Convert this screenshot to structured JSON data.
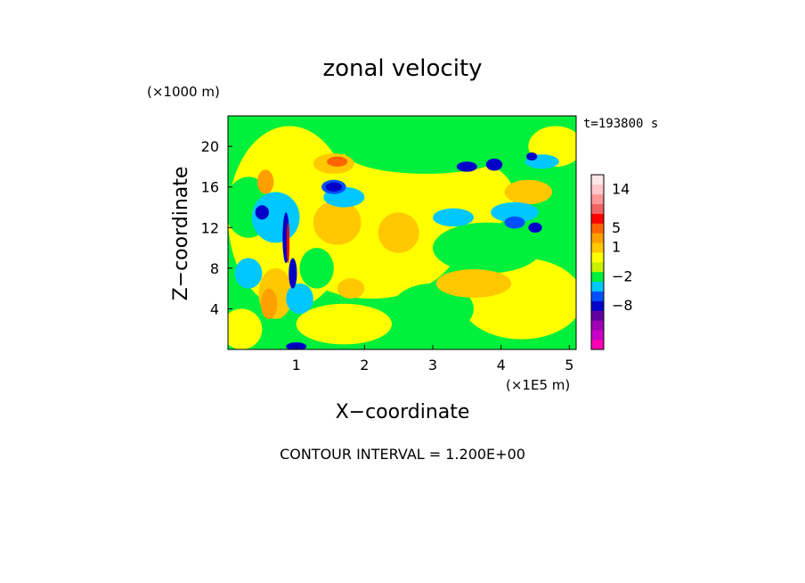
{
  "chart_data": {
    "type": "heatmap",
    "title": "zonal velocity",
    "xlabel": "X−coordinate",
    "ylabel": "Z−coordinate",
    "x_unit": "(×1E5 m)",
    "y_unit": "(×1000 m)",
    "time_label": "t=193800 s",
    "footer": "CONTOUR INTERVAL = 1.200E+00",
    "xlim": [
      0,
      5.1
    ],
    "ylim": [
      0,
      23
    ],
    "x_ticks": [
      {
        "value": 1,
        "label": "1"
      },
      {
        "value": 2,
        "label": "2"
      },
      {
        "value": 3,
        "label": "3"
      },
      {
        "value": 4,
        "label": "4"
      },
      {
        "value": 5,
        "label": "5"
      }
    ],
    "y_ticks": [
      {
        "value": 4,
        "label": "4"
      },
      {
        "value": 8,
        "label": "8"
      },
      {
        "value": 12,
        "label": "12"
      },
      {
        "value": 16,
        "label": "16"
      },
      {
        "value": 20,
        "label": "20"
      }
    ],
    "background_color": "#00f03c",
    "colorbar": {
      "colors": [
        "#ff00b4",
        "#c800c8",
        "#a000b4",
        "#6400a0",
        "#0000c8",
        "#0050ff",
        "#00c8ff",
        "#00f03c",
        "#c8f000",
        "#ffff00",
        "#ffc800",
        "#ffa000",
        "#ff6400",
        "#ff0000",
        "#f06464",
        "#ff9696",
        "#ffc8c8",
        "#ffe6e6"
      ],
      "labels": [
        {
          "index": 16,
          "label": "14"
        },
        {
          "index": 12,
          "label": "5"
        },
        {
          "index": 10,
          "label": "1"
        },
        {
          "index": 7,
          "label": "−2"
        },
        {
          "index": 4,
          "label": "−8"
        }
      ]
    },
    "regions": [
      {
        "color": "#ffff00",
        "x": 0.9,
        "y": 13,
        "rx": 0.9,
        "ry": 9
      },
      {
        "color": "#ffff00",
        "x": 2.1,
        "y": 11,
        "rx": 1.3,
        "ry": 6
      },
      {
        "color": "#ffff00",
        "x": 2.6,
        "y": 18,
        "rx": 1.0,
        "ry": 3
      },
      {
        "color": "#ffff00",
        "x": 3.3,
        "y": 15,
        "rx": 0.9,
        "ry": 4
      },
      {
        "color": "#ffff00",
        "x": 4.3,
        "y": 5,
        "rx": 0.9,
        "ry": 4
      },
      {
        "color": "#ffff00",
        "x": 1.7,
        "y": 2.5,
        "rx": 0.7,
        "ry": 2
      },
      {
        "color": "#ffff00",
        "x": 4.8,
        "y": 20,
        "rx": 0.4,
        "ry": 2
      },
      {
        "color": "#ffff00",
        "x": 0.2,
        "y": 2,
        "rx": 0.3,
        "ry": 2
      },
      {
        "color": "#00f03c",
        "x": 2.9,
        "y": 19.5,
        "rx": 1.2,
        "ry": 2.2
      },
      {
        "color": "#00f03c",
        "x": 0.3,
        "y": 14,
        "rx": 0.35,
        "ry": 3
      },
      {
        "color": "#00f03c",
        "x": 3.8,
        "y": 10,
        "rx": 0.8,
        "ry": 2.5
      },
      {
        "color": "#00f03c",
        "x": 3.0,
        "y": 4,
        "rx": 0.6,
        "ry": 2.5
      },
      {
        "color": "#00f03c",
        "x": 1.3,
        "y": 8,
        "rx": 0.25,
        "ry": 2
      },
      {
        "color": "#ffc800",
        "x": 1.55,
        "y": 18.3,
        "rx": 0.3,
        "ry": 1.0
      },
      {
        "color": "#ffc800",
        "x": 1.6,
        "y": 12.5,
        "rx": 0.35,
        "ry": 2.2
      },
      {
        "color": "#ffc800",
        "x": 2.5,
        "y": 11.5,
        "rx": 0.3,
        "ry": 2.0
      },
      {
        "color": "#ffc800",
        "x": 3.6,
        "y": 6.5,
        "rx": 0.55,
        "ry": 1.4
      },
      {
        "color": "#ffc800",
        "x": 4.4,
        "y": 15.5,
        "rx": 0.35,
        "ry": 1.2
      },
      {
        "color": "#ffc800",
        "x": 0.7,
        "y": 5.5,
        "rx": 0.25,
        "ry": 2.5
      },
      {
        "color": "#ffc800",
        "x": 1.8,
        "y": 6.0,
        "rx": 0.2,
        "ry": 1.0
      },
      {
        "color": "#ffa000",
        "x": 0.55,
        "y": 16.5,
        "rx": 0.12,
        "ry": 1.2
      },
      {
        "color": "#ffa000",
        "x": 0.6,
        "y": 4.5,
        "rx": 0.12,
        "ry": 1.5
      },
      {
        "color": "#ff6400",
        "x": 1.6,
        "y": 18.5,
        "rx": 0.15,
        "ry": 0.5
      },
      {
        "color": "#00c8ff",
        "x": 0.7,
        "y": 13,
        "rx": 0.35,
        "ry": 2.5
      },
      {
        "color": "#00c8ff",
        "x": 1.7,
        "y": 15,
        "rx": 0.3,
        "ry": 1.0
      },
      {
        "color": "#00c8ff",
        "x": 1.05,
        "y": 5,
        "rx": 0.2,
        "ry": 1.5
      },
      {
        "color": "#00c8ff",
        "x": 3.3,
        "y": 13,
        "rx": 0.3,
        "ry": 0.9
      },
      {
        "color": "#00c8ff",
        "x": 4.2,
        "y": 13.5,
        "rx": 0.35,
        "ry": 1.0
      },
      {
        "color": "#00c8ff",
        "x": 0.3,
        "y": 7.5,
        "rx": 0.2,
        "ry": 1.5
      },
      {
        "color": "#00c8ff",
        "x": 4.6,
        "y": 18.5,
        "rx": 0.25,
        "ry": 0.7
      },
      {
        "color": "#0050ff",
        "x": 1.55,
        "y": 16,
        "rx": 0.18,
        "ry": 0.7
      },
      {
        "color": "#0050ff",
        "x": 4.2,
        "y": 12.5,
        "rx": 0.15,
        "ry": 0.6
      },
      {
        "color": "#0000c8",
        "x": 1.55,
        "y": 16,
        "rx": 0.12,
        "ry": 0.45
      },
      {
        "color": "#0000c8",
        "x": 3.5,
        "y": 18,
        "rx": 0.15,
        "ry": 0.5
      },
      {
        "color": "#0000c8",
        "x": 3.9,
        "y": 18.2,
        "rx": 0.12,
        "ry": 0.6
      },
      {
        "color": "#0000c8",
        "x": 0.5,
        "y": 13.5,
        "rx": 0.1,
        "ry": 0.7
      },
      {
        "color": "#0000c8",
        "x": 0.85,
        "y": 11,
        "rx": 0.05,
        "ry": 2.5
      },
      {
        "color": "#0000c8",
        "x": 0.95,
        "y": 7.5,
        "rx": 0.06,
        "ry": 1.5
      },
      {
        "color": "#0000c8",
        "x": 4.5,
        "y": 12,
        "rx": 0.1,
        "ry": 0.5
      },
      {
        "color": "#0000c8",
        "x": 4.45,
        "y": 19,
        "rx": 0.08,
        "ry": 0.4
      },
      {
        "color": "#0000c8",
        "x": 1.0,
        "y": 0.3,
        "rx": 0.15,
        "ry": 0.4
      },
      {
        "color": "#ff0000",
        "x": 0.88,
        "y": 10.5,
        "rx": 0.02,
        "ry": 2.0
      }
    ]
  }
}
